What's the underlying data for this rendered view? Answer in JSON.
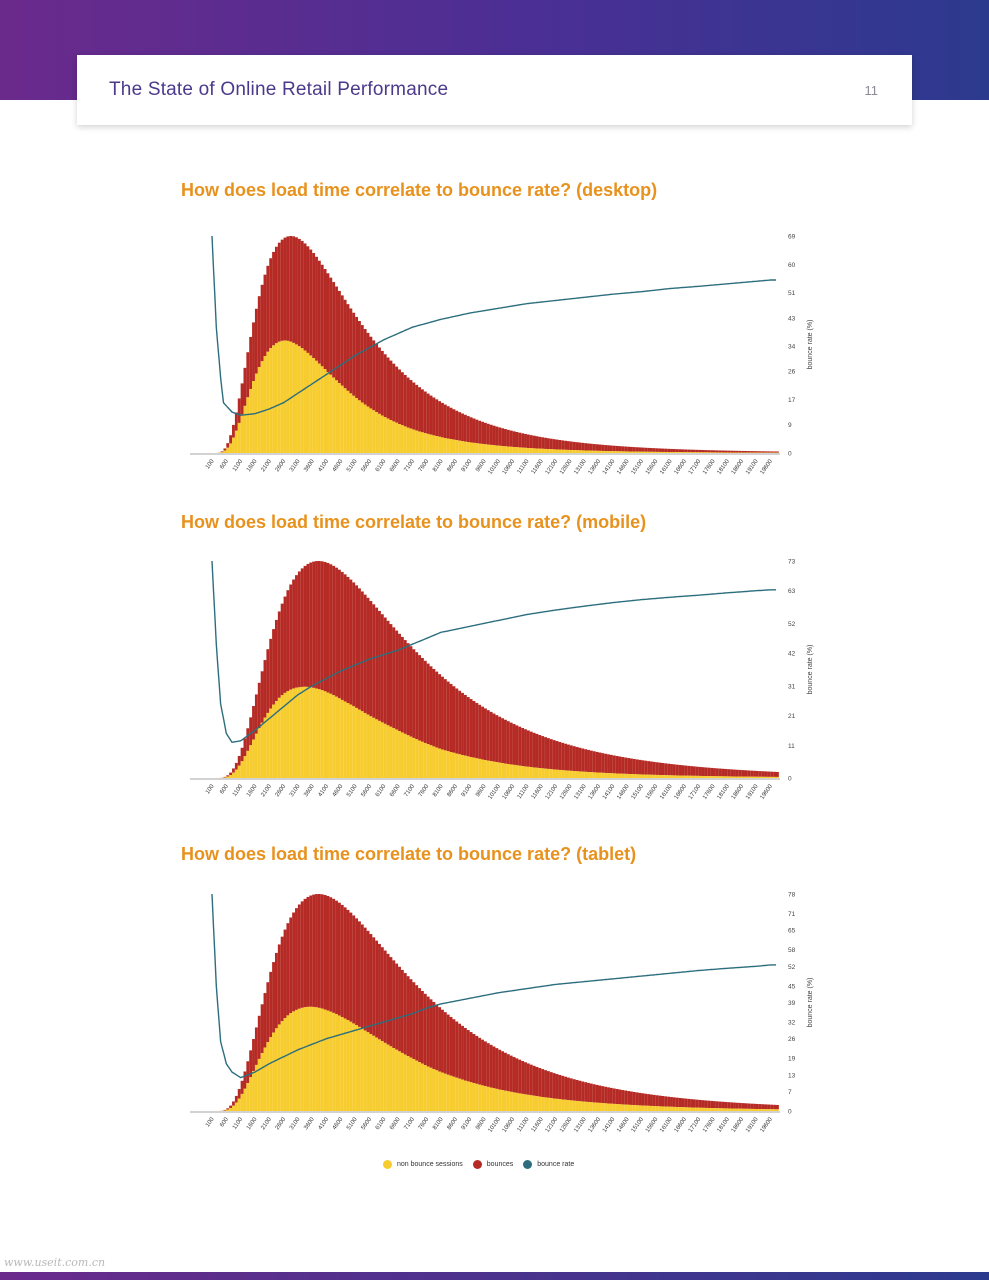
{
  "header": {
    "title": "The State of Online Retail Performance",
    "page_number": "11"
  },
  "colors": {
    "non_bounce": "#f7cc2e",
    "bounces": "#b52a24",
    "bounce_rate_line": "#2c6e7e",
    "title_orange": "#e8921e"
  },
  "legend": [
    {
      "label": "non bounce sessions",
      "color": "#f7cc2e"
    },
    {
      "label": "bounces",
      "color": "#b52a24"
    },
    {
      "label": "bounce rate",
      "color": "#2c6e7e"
    }
  ],
  "watermark": "www.useit.com.cn",
  "chart_data": [
    {
      "type": "bar",
      "title": "How does load time correlate to bounce rate? (desktop)",
      "ylabel_right": "bounce rate (%)",
      "x_tick_labels": [
        "100",
        "600",
        "1100",
        "1600",
        "2100",
        "2600",
        "3100",
        "3600",
        "4100",
        "4600",
        "5100",
        "5600",
        "6100",
        "6600",
        "7100",
        "7600",
        "8100",
        "8600",
        "9100",
        "9600",
        "10100",
        "10600",
        "11100",
        "11600",
        "12100",
        "12600",
        "13100",
        "13600",
        "14100",
        "14600",
        "15100",
        "15600",
        "16100",
        "16600",
        "17100",
        "17600",
        "18100",
        "18600",
        "19100",
        "19600"
      ],
      "y_right_ticks": [
        "0",
        "9",
        "17",
        "26",
        "34",
        "43",
        "51",
        "60",
        "69"
      ],
      "y_right_max": 69,
      "sessions_peak_ms": 2900,
      "bounce_share_at_peak": 0.35,
      "bounce_rate_points": [
        [
          100,
          69
        ],
        [
          250,
          40
        ],
        [
          400,
          24
        ],
        [
          500,
          16
        ],
        [
          600,
          15
        ],
        [
          800,
          13
        ],
        [
          1100,
          12
        ],
        [
          1600,
          12.5
        ],
        [
          2100,
          14
        ],
        [
          2600,
          16
        ],
        [
          3100,
          19
        ],
        [
          3600,
          22
        ],
        [
          4100,
          25
        ],
        [
          4600,
          28
        ],
        [
          5100,
          31
        ],
        [
          5600,
          33.5
        ],
        [
          6100,
          36
        ],
        [
          6600,
          38
        ],
        [
          7100,
          40
        ],
        [
          8100,
          42.5
        ],
        [
          9100,
          44.5
        ],
        [
          10100,
          46
        ],
        [
          11100,
          47.5
        ],
        [
          12100,
          48.5
        ],
        [
          13100,
          49.5
        ],
        [
          14100,
          50.5
        ],
        [
          15100,
          51.3
        ],
        [
          16100,
          52.3
        ],
        [
          17100,
          53
        ],
        [
          18100,
          53.8
        ],
        [
          19100,
          54.6
        ],
        [
          19600,
          55
        ]
      ]
    },
    {
      "type": "bar",
      "title": "How does load time correlate to bounce rate? (mobile)",
      "ylabel_right": "bounce rate (%)",
      "x_tick_labels": [
        "100",
        "600",
        "1100",
        "1600",
        "2100",
        "2600",
        "3100",
        "3600",
        "4100",
        "4600",
        "5100",
        "5600",
        "6100",
        "6600",
        "7100",
        "7600",
        "8100",
        "8600",
        "9100",
        "9600",
        "10100",
        "10600",
        "11100",
        "11600",
        "12100",
        "12600",
        "13100",
        "13600",
        "14100",
        "14600",
        "15100",
        "15600",
        "16100",
        "16600",
        "17100",
        "17600",
        "18100",
        "18600",
        "19100",
        "19600"
      ],
      "y_right_ticks": [
        "0",
        "11",
        "21",
        "31",
        "42",
        "52",
        "63",
        "73"
      ],
      "y_right_max": 73,
      "sessions_peak_ms": 3900,
      "bounce_share_at_peak": 0.12,
      "bounce_rate_points": [
        [
          100,
          73
        ],
        [
          250,
          45
        ],
        [
          400,
          25
        ],
        [
          600,
          15
        ],
        [
          800,
          12
        ],
        [
          1100,
          12.5
        ],
        [
          1600,
          16
        ],
        [
          2100,
          20
        ],
        [
          2600,
          24
        ],
        [
          3100,
          28
        ],
        [
          3600,
          31
        ],
        [
          4100,
          33.5
        ],
        [
          4600,
          36
        ],
        [
          5100,
          38
        ],
        [
          5600,
          40
        ],
        [
          6100,
          41.5
        ],
        [
          6600,
          43
        ],
        [
          7100,
          45
        ],
        [
          7600,
          47
        ],
        [
          8100,
          49
        ],
        [
          9100,
          51
        ],
        [
          10100,
          53
        ],
        [
          11100,
          55
        ],
        [
          12100,
          56.5
        ],
        [
          13100,
          57.8
        ],
        [
          14100,
          59
        ],
        [
          15100,
          60
        ],
        [
          16100,
          60.8
        ],
        [
          17100,
          61.5
        ],
        [
          18100,
          62.3
        ],
        [
          19100,
          63
        ],
        [
          19600,
          63.3
        ]
      ]
    },
    {
      "type": "bar",
      "title": "How does load time correlate to bounce rate? (tablet)",
      "ylabel_right": "bounce rate (%)",
      "x_tick_labels": [
        "100",
        "600",
        "1100",
        "1600",
        "2100",
        "2600",
        "3100",
        "3600",
        "4100",
        "4600",
        "5100",
        "5600",
        "6100",
        "6600",
        "7100",
        "7600",
        "8100",
        "8600",
        "9100",
        "9600",
        "10100",
        "10600",
        "11100",
        "11600",
        "12100",
        "12600",
        "13100",
        "13600",
        "14100",
        "14600",
        "15100",
        "15600",
        "16100",
        "16600",
        "17100",
        "17600",
        "18100",
        "18600",
        "19100",
        "19600"
      ],
      "y_right_ticks": [
        "0",
        "7",
        "13",
        "19",
        "26",
        "32",
        "39",
        "45",
        "52",
        "58",
        "65",
        "71",
        "78"
      ],
      "y_right_max": 78,
      "sessions_peak_ms": 3900,
      "bounce_share_at_peak": 0.25,
      "bounce_rate_points": [
        [
          100,
          78
        ],
        [
          250,
          45
        ],
        [
          400,
          25
        ],
        [
          600,
          17
        ],
        [
          800,
          14
        ],
        [
          1100,
          12
        ],
        [
          1600,
          14
        ],
        [
          2100,
          17
        ],
        [
          2600,
          19.5
        ],
        [
          3100,
          22
        ],
        [
          3600,
          24
        ],
        [
          4100,
          26
        ],
        [
          4600,
          27.5
        ],
        [
          5100,
          29
        ],
        [
          5600,
          30.5
        ],
        [
          6100,
          32
        ],
        [
          6600,
          33.5
        ],
        [
          7100,
          35
        ],
        [
          7600,
          37
        ],
        [
          8100,
          38.5
        ],
        [
          9100,
          40.5
        ],
        [
          10100,
          42.5
        ],
        [
          11100,
          44
        ],
        [
          12100,
          45.5
        ],
        [
          13100,
          46.5
        ],
        [
          14100,
          47.5
        ],
        [
          15100,
          48.5
        ],
        [
          16100,
          49.5
        ],
        [
          17100,
          50.5
        ],
        [
          18100,
          51.3
        ],
        [
          19100,
          52
        ],
        [
          19600,
          52.5
        ]
      ]
    }
  ]
}
